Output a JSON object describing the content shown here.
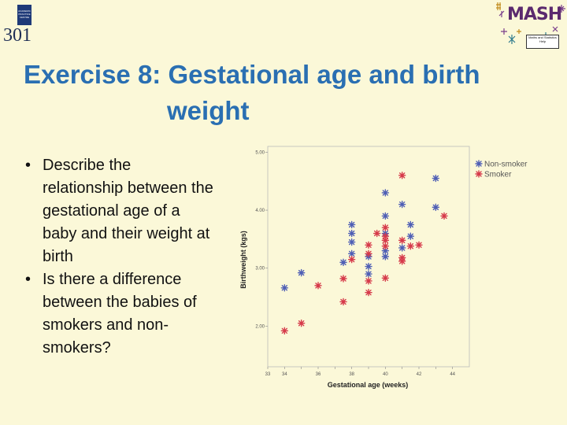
{
  "header": {
    "logo_badge_text": "ACADEMIC PRACTICE CENTRE",
    "logo_number": "301",
    "mash_logo": "MASH",
    "mash_tag": "Maths and Statistics Help"
  },
  "slide": {
    "title_line1": "Exercise 8: Gestational age and birth",
    "title_line2": "weight",
    "bullets": [
      "Describe the relationship between the gestational age of a baby and their weight at birth",
      "Is there a difference between the babies of smokers and non-smokers?"
    ]
  },
  "chart_data": {
    "type": "scatter",
    "xlabel": "Gestational age (weeks)",
    "ylabel": "Birthweight (kgs)",
    "xlim": [
      33,
      45
    ],
    "ylim": [
      1.3,
      5.1
    ],
    "x_ticks": [
      33,
      34,
      35,
      36,
      37,
      38,
      39,
      40,
      41,
      42,
      43,
      44
    ],
    "x_tick_labels": [
      "33",
      "34",
      "",
      "36",
      "",
      "38",
      "",
      "40",
      "",
      "42",
      "",
      "44"
    ],
    "y_ticks": [
      2.0,
      3.0,
      4.0,
      5.0
    ],
    "y_tick_labels": [
      "2.00",
      "3.00",
      "4.00",
      "5.00"
    ],
    "grid": false,
    "legend_position": "top-right",
    "colors": {
      "Non-smoker": "#4f5fb5",
      "Smoker": "#d63a4a"
    },
    "series": [
      {
        "name": "Non-smoker",
        "points": [
          [
            34,
            2.66
          ],
          [
            35,
            2.92
          ],
          [
            37.5,
            3.1
          ],
          [
            38,
            3.75
          ],
          [
            38,
            3.6
          ],
          [
            38,
            3.45
          ],
          [
            38,
            3.25
          ],
          [
            39,
            3.2
          ],
          [
            39,
            3.03
          ],
          [
            39,
            2.9
          ],
          [
            40,
            4.3
          ],
          [
            40,
            3.9
          ],
          [
            40,
            3.6
          ],
          [
            40,
            3.3
          ],
          [
            40,
            3.2
          ],
          [
            41,
            4.1
          ],
          [
            41,
            3.35
          ],
          [
            41.5,
            3.75
          ],
          [
            41.5,
            3.55
          ],
          [
            43,
            4.55
          ],
          [
            43,
            4.05
          ]
        ]
      },
      {
        "name": "Smoker",
        "points": [
          [
            34,
            1.92
          ],
          [
            35,
            2.05
          ],
          [
            36,
            2.7
          ],
          [
            37.5,
            2.42
          ],
          [
            37.5,
            2.82
          ],
          [
            38,
            3.15
          ],
          [
            39,
            3.4
          ],
          [
            39,
            3.25
          ],
          [
            39,
            2.78
          ],
          [
            39,
            2.58
          ],
          [
            39.5,
            3.6
          ],
          [
            40,
            3.7
          ],
          [
            40,
            3.55
          ],
          [
            40,
            3.48
          ],
          [
            40,
            3.38
          ],
          [
            40,
            2.83
          ],
          [
            41,
            4.6
          ],
          [
            41,
            3.48
          ],
          [
            41,
            3.12
          ],
          [
            41,
            3.18
          ],
          [
            41.5,
            3.38
          ],
          [
            42,
            3.4
          ],
          [
            43.5,
            3.9
          ]
        ]
      }
    ]
  }
}
